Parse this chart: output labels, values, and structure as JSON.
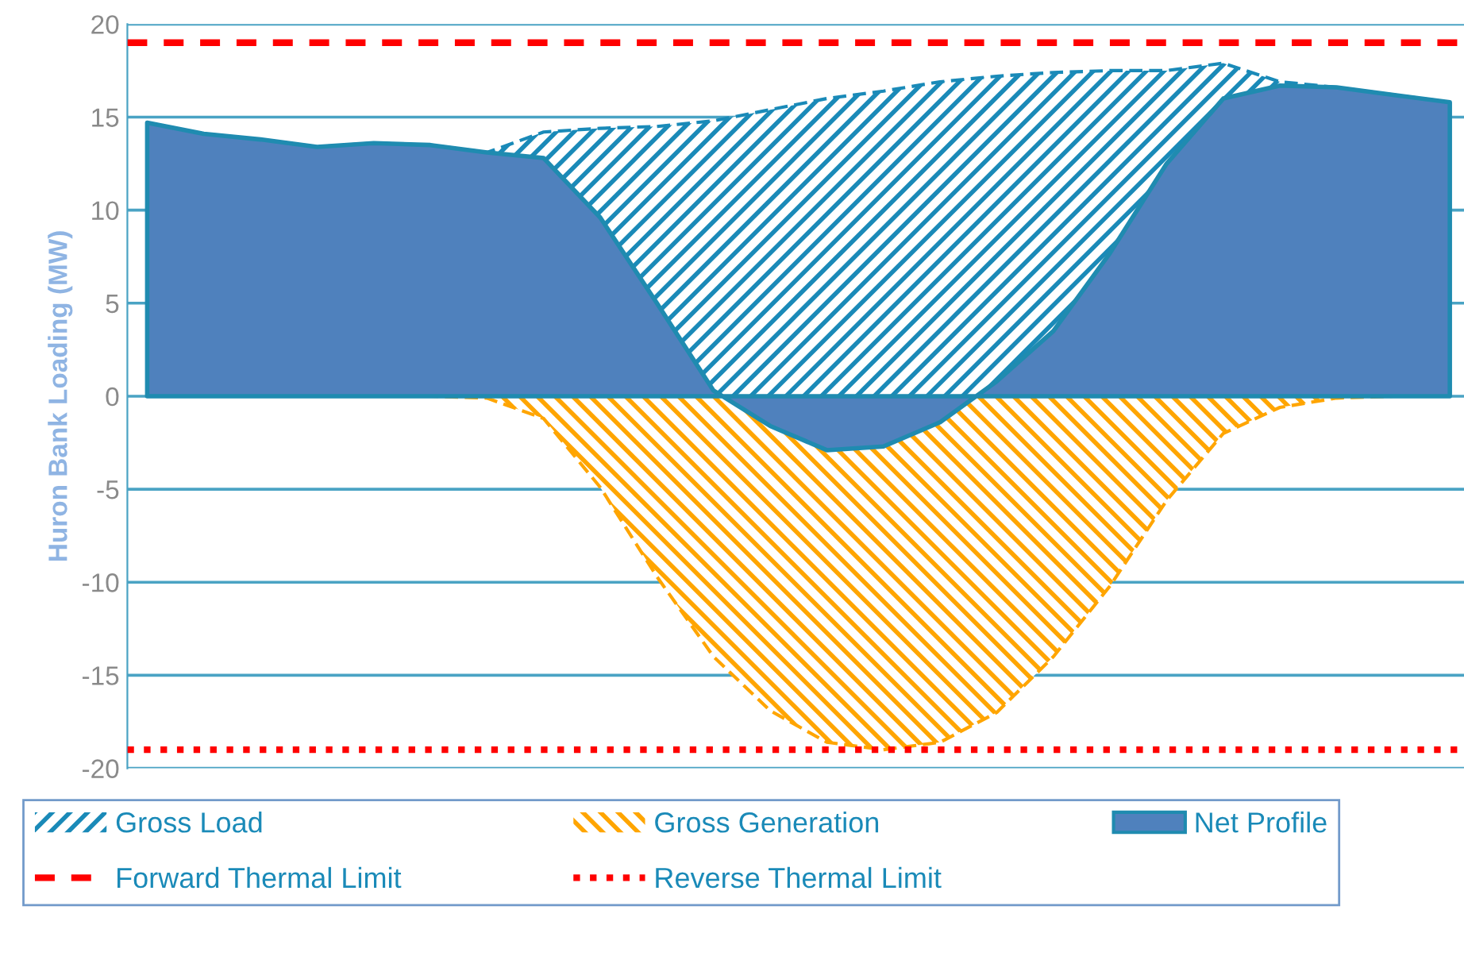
{
  "chart_data": {
    "type": "area",
    "ylabel": "Huron Bank Loading (MW)",
    "categories": [
      null,
      null,
      null,
      null,
      null,
      null,
      null,
      null,
      null,
      null,
      null,
      null,
      null,
      null,
      null,
      null,
      null,
      null,
      null,
      null,
      null,
      null,
      null,
      null
    ],
    "series": [
      {
        "name": "Gross Load",
        "color": "#1a8ab8",
        "line_style": "dashed",
        "values": [
          14.7,
          14.1,
          13.8,
          13.4,
          13.6,
          13.5,
          13.1,
          14.2,
          14.4,
          14.5,
          14.8,
          15.4,
          16.0,
          16.4,
          16.9,
          17.2,
          17.4,
          17.5,
          17.5,
          17.9,
          16.9,
          16.6,
          16.2,
          15.8
        ]
      },
      {
        "name": "Gross Generation",
        "color": "#ffa500",
        "line_style": "dashed",
        "values": [
          0,
          0,
          0,
          0,
          0,
          0,
          -0.1,
          -1.2,
          -4.9,
          -9.7,
          -14.0,
          -16.9,
          -18.6,
          -19.0,
          -18.6,
          -17.0,
          -14.0,
          -10.2,
          -5.6,
          -2.0,
          -0.6,
          -0.1,
          0,
          0
        ]
      },
      {
        "name": "Net Profile",
        "color": "#4f81bd",
        "line_style": "solid",
        "values": [
          14.7,
          14.1,
          13.8,
          13.4,
          13.6,
          13.5,
          13.1,
          12.8,
          9.6,
          5.0,
          0.3,
          -1.6,
          -2.9,
          -2.7,
          -1.4,
          0.8,
          3.5,
          7.7,
          12.5,
          16.0,
          16.7,
          16.6,
          16.2,
          15.8
        ]
      }
    ],
    "ref_lines": [
      {
        "axis": "y",
        "value": 19,
        "label": "Forward Thermal Limit",
        "color": "#ff0000",
        "line_style": "dashed"
      },
      {
        "axis": "y",
        "value": -19,
        "label": "Reverse Thermal Limit",
        "color": "#ff0000",
        "line_style": "dotted"
      }
    ],
    "ylim": [
      -20,
      20
    ],
    "yticks": [
      -20,
      -15,
      -10,
      -5,
      0,
      5,
      10,
      15,
      20
    ],
    "grid": "y",
    "legend": "bottom",
    "tick_labels": "y"
  }
}
